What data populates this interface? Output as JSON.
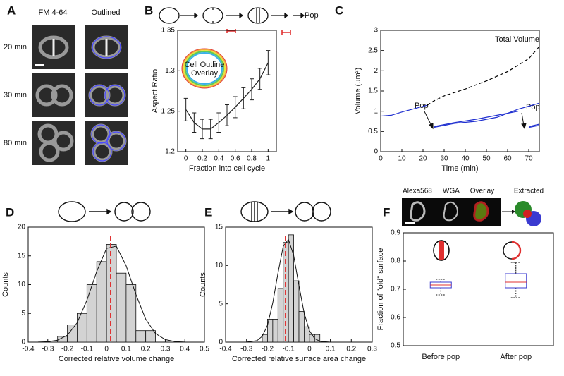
{
  "panel_labels": [
    "A",
    "B",
    "C",
    "D",
    "E",
    "F"
  ],
  "panel_a": {
    "columns": [
      "FM 4-64",
      "Outlined"
    ],
    "rows": [
      "20 min",
      "30 min",
      "80 min"
    ]
  },
  "panel_f_images": {
    "labels": [
      "Alexa568",
      "WGA",
      "Overlay",
      "Extracted"
    ]
  },
  "chart_data": [
    {
      "type": "line",
      "xlabel": "Fraction into cell cycle",
      "ylabel": "Aspect Ratio",
      "annotations": [
        "Pop",
        "Cell Outline",
        "Overlay"
      ],
      "x": [
        0,
        0.1,
        0.2,
        0.3,
        0.4,
        0.5,
        0.6,
        0.7,
        0.8,
        0.9,
        1
      ],
      "series": [
        {
          "color": "#222222",
          "values": [
            1.252,
            1.236,
            1.228,
            1.228,
            1.236,
            1.245,
            1.255,
            1.266,
            1.277,
            1.29,
            1.31
          ],
          "errors": [
            0.014,
            0.012,
            0.012,
            0.012,
            0.012,
            0.013,
            0.013,
            0.013,
            0.013,
            0.013,
            0.015
          ]
        }
      ],
      "xlim": [
        -0.1,
        1.1
      ],
      "ylim": [
        1.2,
        1.35
      ],
      "xticks": [
        0,
        0.2,
        0.4,
        0.6,
        0.8,
        1
      ],
      "yticks": [
        1.2,
        1.25,
        1.3,
        1.35
      ]
    },
    {
      "type": "line",
      "xlabel": "Time (min)",
      "ylabel": "Volume (μm³)",
      "annotations": [
        "Pop",
        "Pop"
      ],
      "series": [
        {
          "name": "Total Volume",
          "color": "#000000",
          "dash": true,
          "x": [
            22,
            25,
            30,
            40,
            50,
            60,
            70,
            75
          ],
          "values": [
            1.15,
            1.25,
            1.38,
            1.55,
            1.75,
            1.98,
            2.3,
            2.6
          ]
        },
        {
          "color": "#1f2fd0",
          "x": [
            0,
            5,
            10,
            15,
            20,
            22
          ],
          "values": [
            0.88,
            0.9,
            0.98,
            1.05,
            1.12,
            1.15
          ]
        },
        {
          "color": "#1f2fd0",
          "x": [
            25,
            35,
            45,
            55,
            65
          ],
          "values": [
            0.62,
            0.72,
            0.8,
            0.9,
            1.0
          ]
        },
        {
          "color": "#1f2fd0",
          "x": [
            25,
            35,
            45,
            55,
            65,
            75
          ],
          "values": [
            0.6,
            0.7,
            0.75,
            0.85,
            1.05,
            1.2
          ]
        },
        {
          "color": "#1f2fd0",
          "x": [
            70,
            75
          ],
          "values": [
            0.62,
            0.68
          ]
        },
        {
          "color": "#1f2fd0",
          "x": [
            70,
            75
          ],
          "values": [
            0.6,
            0.65
          ]
        }
      ],
      "xlim": [
        0,
        75
      ],
      "ylim": [
        0,
        3
      ],
      "xticks": [
        0,
        10,
        20,
        30,
        40,
        50,
        60,
        70
      ],
      "yticks": [
        0,
        0.5,
        1,
        1.5,
        2,
        2.5,
        3
      ]
    },
    {
      "type": "histogram",
      "xlabel": "Corrected relative volume change",
      "ylabel": "Counts",
      "color": "#d3d3d3",
      "bins": [
        -0.25,
        -0.2,
        -0.15,
        -0.1,
        -0.05,
        0,
        0.05,
        0.1,
        0.15,
        0.2,
        0.25
      ],
      "counts": [
        1,
        3,
        5,
        10,
        14,
        17,
        12,
        10,
        2,
        2
      ],
      "fit": {
        "x": [
          -0.4,
          -0.35,
          -0.3,
          -0.25,
          -0.2,
          -0.15,
          -0.1,
          -0.05,
          0,
          0.05,
          0.1,
          0.15,
          0.2,
          0.25,
          0.3,
          0.35,
          0.4,
          0.45,
          0.5
        ],
        "values": [
          0,
          0.01,
          0.07,
          0.34,
          1.21,
          3.37,
          7.3,
          12.3,
          16.3,
          16.7,
          13.3,
          8.3,
          4.0,
          1.5,
          0.44,
          0.1,
          0.02,
          0,
          0
        ]
      },
      "mean": 0.02,
      "mean_color": "#e03030",
      "xlim": [
        -0.4,
        0.5
      ],
      "ylim": [
        0,
        20
      ],
      "xticks": [
        -0.4,
        -0.3,
        -0.2,
        -0.1,
        0,
        0.1,
        0.2,
        0.3,
        0.4,
        0.5
      ],
      "yticks": [
        0,
        5,
        10,
        15,
        20
      ]
    },
    {
      "type": "histogram",
      "xlabel": "Corrected relative surface area change",
      "ylabel": "Counts",
      "color": "#d3d3d3",
      "bins": [
        -0.225,
        -0.2,
        -0.175,
        -0.15,
        -0.125,
        -0.1,
        -0.075,
        -0.05,
        -0.025,
        0,
        0.025,
        0.05
      ],
      "counts": [
        1,
        3,
        3,
        7,
        13,
        14,
        8,
        4,
        2,
        1,
        1
      ],
      "fit": {
        "x": [
          -0.4,
          -0.3,
          -0.25,
          -0.225,
          -0.2,
          -0.175,
          -0.15,
          -0.125,
          -0.1,
          -0.075,
          -0.05,
          -0.025,
          0,
          0.025,
          0.05,
          0.1,
          0.2,
          0.3
        ],
        "values": [
          0,
          0.01,
          0.2,
          0.76,
          2.2,
          5.1,
          9.0,
          12.5,
          13.4,
          11.3,
          7.4,
          3.8,
          1.5,
          0.46,
          0.11,
          0,
          0,
          0
        ]
      },
      "mean": -0.115,
      "mean_color": "#e03030",
      "xlim": [
        -0.4,
        0.3
      ],
      "ylim": [
        0,
        15
      ],
      "xticks": [
        -0.4,
        -0.3,
        -0.2,
        -0.1,
        0,
        0.1,
        0.2,
        0.3
      ],
      "yticks": [
        0,
        5,
        10,
        15
      ]
    },
    {
      "type": "box",
      "ylabel": "Fraction of \"old\" surface",
      "color": "#3a3ad0",
      "median_color": "#e03030",
      "categories": [
        "Before pop",
        "After pop"
      ],
      "boxes": [
        {
          "min": 0.68,
          "q1": 0.705,
          "median": 0.715,
          "q3": 0.725,
          "max": 0.735
        },
        {
          "min": 0.67,
          "q1": 0.705,
          "median": 0.725,
          "q3": 0.755,
          "max": 0.795
        }
      ],
      "ylim": [
        0.5,
        0.9
      ],
      "yticks": [
        0.5,
        0.6,
        0.7,
        0.8,
        0.9
      ]
    }
  ]
}
